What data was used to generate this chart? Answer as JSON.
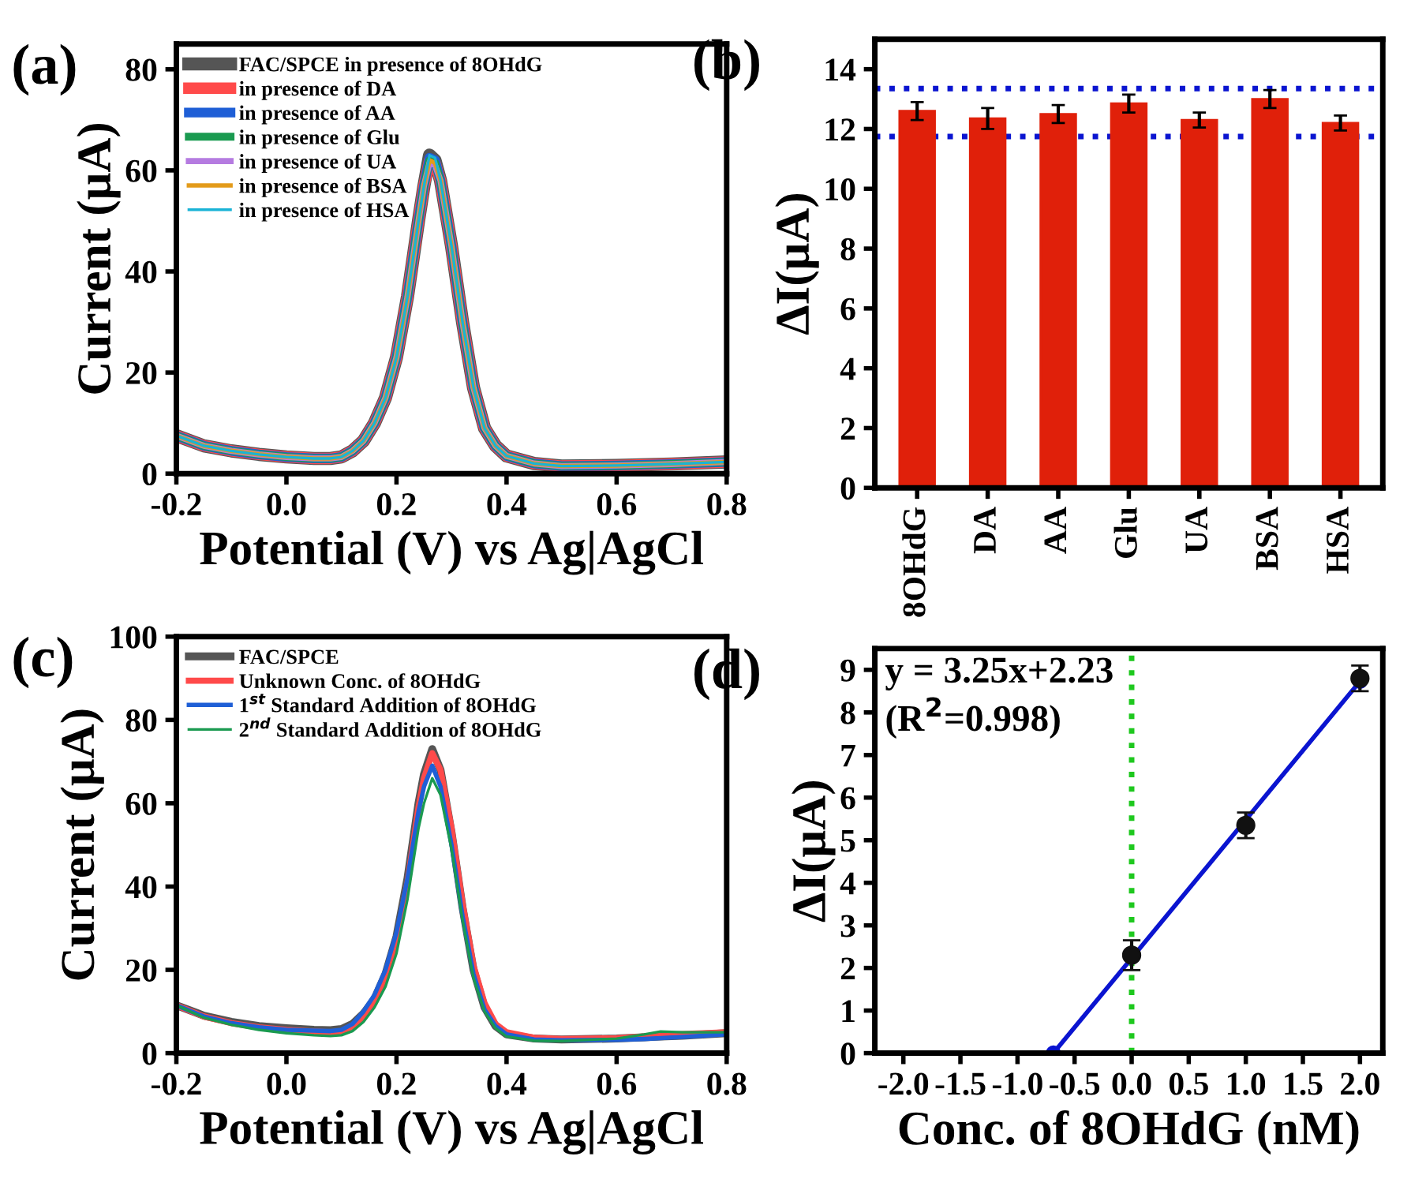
{
  "chart_data": [
    {
      "type": "line",
      "title": "(a)",
      "xlabel": "Potential (V) vs Ag|AgCl",
      "ylabel": "Current (μA)",
      "xlim": [
        -0.2,
        0.8
      ],
      "ylim": [
        0,
        85
      ],
      "xticks": [
        {
          "value": -0.2,
          "label": "-0.2"
        },
        {
          "value": 0,
          "label": "0.0"
        },
        0.2,
        0.4,
        0.6,
        0.8
      ],
      "yticks": [
        0,
        20,
        40,
        60,
        80
      ],
      "legend": "top left",
      "marker": "none",
      "line_style": "solid",
      "grid": false,
      "x": [
        -0.2,
        -0.15,
        -0.1,
        -0.05,
        0,
        0.05,
        0.08,
        0.1,
        0.12,
        0.14,
        0.16,
        0.18,
        0.2,
        0.22,
        0.24,
        0.25,
        0.26,
        0.27,
        0.28,
        0.3,
        0.32,
        0.34,
        0.36,
        0.38,
        0.4,
        0.45,
        0.5,
        0.6,
        0.7,
        0.8
      ],
      "series": [
        {
          "name": "FAC/SPCE in presence of 8OHdG",
          "color": "#555555",
          "values": [
            7.5,
            5.5,
            4.5,
            3.8,
            3.3,
            3.0,
            3.0,
            3.3,
            4.5,
            6.5,
            10,
            15,
            23,
            35,
            50,
            57,
            63,
            62,
            58,
            45,
            30,
            17,
            9,
            5.5,
            3.5,
            2.0,
            1.5,
            1.6,
            1.9,
            2.3
          ]
        },
        {
          "name": "in presence of DA",
          "color": "#ff4a4a",
          "values": [
            7.5,
            5.5,
            4.5,
            3.8,
            3.3,
            3.0,
            3.0,
            3.3,
            4.5,
            6.5,
            10,
            15,
            23,
            35,
            50,
            57,
            62,
            61.5,
            58,
            45,
            30,
            17,
            9,
            5.5,
            3.5,
            2.0,
            1.5,
            1.6,
            1.9,
            2.3
          ]
        },
        {
          "name": "in presence of AA",
          "color": "#1f5fd6",
          "values": [
            7.5,
            5.5,
            4.5,
            3.8,
            3.3,
            3.0,
            3.0,
            3.3,
            4.5,
            6.5,
            10,
            15,
            23,
            35,
            50,
            57,
            62.5,
            62,
            58,
            45,
            30,
            17,
            9,
            5.5,
            3.5,
            2.0,
            1.5,
            1.6,
            1.9,
            2.3
          ]
        },
        {
          "name": "in presence of Glu",
          "color": "#1a9a50",
          "values": [
            7.5,
            5.5,
            4.5,
            3.8,
            3.3,
            3.0,
            3.0,
            3.3,
            4.5,
            6.5,
            10,
            15,
            23,
            35,
            50,
            57,
            62,
            61.5,
            58,
            45,
            30,
            17,
            9,
            5.5,
            3.5,
            2.0,
            1.5,
            1.6,
            1.9,
            2.3
          ]
        },
        {
          "name": "in presence of UA",
          "color": "#b57be0",
          "values": [
            7.5,
            5.5,
            4.5,
            3.8,
            3.3,
            3.0,
            3.0,
            3.3,
            4.5,
            6.5,
            10,
            15,
            23,
            35,
            50,
            57,
            61.5,
            61,
            58,
            45,
            30,
            17,
            9,
            5.5,
            3.5,
            2.0,
            1.5,
            1.6,
            1.9,
            2.3
          ]
        },
        {
          "name": "in presence of BSA",
          "color": "#e39b1a",
          "values": [
            7.5,
            5.5,
            4.5,
            3.8,
            3.3,
            3.0,
            3.0,
            3.3,
            4.5,
            6.5,
            10,
            15,
            23,
            35,
            50,
            57,
            62,
            61.5,
            58,
            45,
            30,
            17,
            9,
            5.5,
            3.5,
            2.0,
            1.5,
            1.6,
            1.9,
            2.3
          ]
        },
        {
          "name": "in presence of HSA",
          "color": "#1ab3d6",
          "values": [
            7.5,
            5.5,
            4.5,
            3.8,
            3.3,
            3.0,
            3.0,
            3.3,
            4.5,
            6.5,
            10,
            15,
            23,
            35,
            50,
            57,
            63,
            62.5,
            58,
            45,
            30,
            17,
            9,
            5.5,
            3.5,
            2.0,
            1.5,
            1.6,
            1.9,
            2.3
          ]
        }
      ]
    },
    {
      "type": "bar",
      "title": "(b)",
      "ylabel": "ΔI(μA)",
      "categories": [
        "8OHdG",
        "DA",
        "AA",
        "Glu",
        "UA",
        "BSA",
        "HSA"
      ],
      "values": [
        12.6,
        12.35,
        12.5,
        12.85,
        12.3,
        13.0,
        12.2
      ],
      "errors": [
        0.3,
        0.35,
        0.3,
        0.3,
        0.25,
        0.3,
        0.25
      ],
      "color": "#e0200a",
      "ylim": [
        0,
        15
      ],
      "yticks": [
        0,
        2,
        4,
        6,
        8,
        10,
        12,
        14
      ],
      "grid": false,
      "ref_lines": [
        {
          "axis": "y",
          "value": 13.35,
          "color": "#0a14d0",
          "line_style": "dotted"
        },
        {
          "axis": "y",
          "value": 11.75,
          "color": "#0a14d0",
          "line_style": "dotted"
        }
      ]
    },
    {
      "type": "line",
      "title": "(c)",
      "xlabel": "Potential (V) vs Ag|AgCl",
      "ylabel": "Current (μA)",
      "xlim": [
        -0.2,
        0.8
      ],
      "ylim": [
        0,
        100
      ],
      "xticks": [
        {
          "value": -0.2,
          "label": "-0.2"
        },
        {
          "value": 0,
          "label": "0.0"
        },
        0.2,
        0.4,
        0.6,
        0.8
      ],
      "yticks": [
        0,
        20,
        40,
        60,
        80,
        100
      ],
      "legend": "top left",
      "marker": "none",
      "line_style": "solid",
      "grid": false,
      "x": [
        -0.2,
        -0.15,
        -0.1,
        -0.05,
        0,
        0.05,
        0.08,
        0.1,
        0.12,
        0.14,
        0.16,
        0.18,
        0.2,
        0.22,
        0.24,
        0.25,
        0.265,
        0.28,
        0.3,
        0.32,
        0.34,
        0.36,
        0.38,
        0.4,
        0.45,
        0.5,
        0.6,
        0.65,
        0.68,
        0.72,
        0.8
      ],
      "series": [
        {
          "name": "FAC/SPCE",
          "color": "#555555",
          "values": [
            11.5,
            9,
            7.5,
            6.5,
            6,
            5.6,
            5.5,
            5.8,
            7,
            9.5,
            13,
            19,
            28,
            42,
            60,
            67,
            73,
            68,
            53,
            35,
            20,
            11,
            6.5,
            4.5,
            3.5,
            3.3,
            3.5,
            3.8,
            4.0,
            4.2,
            4.8
          ]
        },
        {
          "name": "Unknown Conc. of 8OHdG",
          "color": "#ff4a4a",
          "values": [
            11.5,
            8.8,
            7.2,
            6.2,
            5.6,
            5.2,
            5.0,
            5.2,
            6.2,
            8.5,
            12,
            18,
            27,
            41,
            59,
            66,
            72,
            68,
            54,
            36,
            21,
            12,
            7,
            5,
            3.7,
            3.4,
            3.6,
            4.0,
            4.3,
            4.6,
            5.0
          ]
        },
        {
          "name": "1$^{st}$ Standard Addition of 8OHdG",
          "color": "#1f5fd6",
          "values": [
            11.5,
            8.8,
            7.2,
            6.2,
            5.6,
            5.4,
            5.3,
            5.6,
            7,
            10,
            14,
            20,
            29,
            42,
            58,
            64,
            69,
            64,
            50,
            33,
            19,
            10.5,
            6.5,
            4.5,
            3.3,
            3.1,
            3.2,
            3.4,
            3.6,
            3.9,
            4.5
          ]
        },
        {
          "name": "2$^{nd}$ Standard Addition of 8OHdG",
          "color": "#1a9a50",
          "values": [
            11.5,
            8.5,
            6.8,
            5.6,
            4.8,
            4.3,
            4.1,
            4.3,
            5.3,
            7.5,
            11,
            16,
            24,
            37,
            54,
            60,
            66,
            62,
            49,
            32,
            18,
            10,
            6,
            4,
            3.0,
            2.9,
            3.5,
            4.5,
            5.2,
            5.0,
            5.0
          ]
        }
      ]
    },
    {
      "type": "scatter",
      "title": "(d)",
      "xlabel": "Conc. of 8OHdG (nM)",
      "ylabel": "ΔI(μA)",
      "xlim": [
        -2.25,
        2.2
      ],
      "ylim": [
        0,
        9.5
      ],
      "xticks": [
        {
          "value": -2,
          "label": "-2.0"
        },
        {
          "value": -1.5,
          "label": "-1.5"
        },
        {
          "value": -1,
          "label": "-1.0"
        },
        {
          "value": -0.5,
          "label": "-0.5"
        },
        {
          "value": 0,
          "label": "0.0"
        },
        0.5,
        {
          "value": 1,
          "label": "1.0"
        },
        1.5,
        {
          "value": 2,
          "label": "2.0"
        }
      ],
      "yticks": [
        0,
        1,
        2,
        3,
        4,
        5,
        6,
        7,
        8,
        9
      ],
      "marker": "circle",
      "grid": false,
      "annotations": [
        "y = 3.25x+2.23",
        "(R$^{2}$=0.998)"
      ],
      "ref_lines": [
        {
          "axis": "x",
          "value": 0,
          "color": "#1ec81e",
          "line_style": "dotted"
        }
      ],
      "series": [
        {
          "type": "line",
          "color": "#0a14d0",
          "x": [
            -0.686,
            2.0
          ],
          "values": [
            0,
            8.73
          ]
        },
        {
          "type": "scatter",
          "color": "#111111",
          "x": [
            0,
            1,
            2
          ],
          "values": [
            2.3,
            5.35,
            8.8
          ],
          "errors": [
            0.35,
            0.3,
            0.3
          ]
        }
      ]
    }
  ]
}
